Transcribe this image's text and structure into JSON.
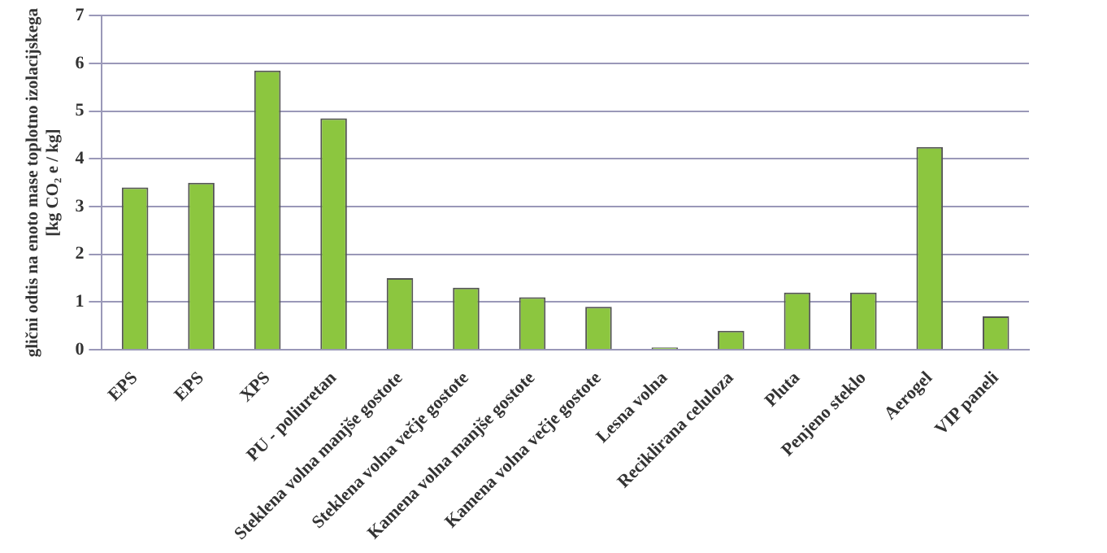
{
  "chart_data": {
    "type": "bar",
    "ylabel": "glični odtis na enoto mase toplotno izolacijskega\n[kg CO₂ e / kg]",
    "categories": [
      "EPS",
      "EPS",
      "XPS",
      "PU - poliuretan",
      "Steklena volna manjše gostote",
      "Steklena volna večje gostote",
      "Kamena volna manjše gostote",
      "Kamena volna večje gostote",
      "Lesna volna",
      "Reciklirana celuloza",
      "Pluta",
      "Penjeno steklo",
      "Aerogel",
      "VIP paneli"
    ],
    "values": [
      3.4,
      3.5,
      5.85,
      4.85,
      1.5,
      1.3,
      1.1,
      0.9,
      0.05,
      0.4,
      1.2,
      1.2,
      4.25,
      0.7
    ],
    "color": "#8cc63f",
    "ylim": [
      0,
      7
    ],
    "yticks": [
      0,
      1,
      2,
      3,
      4,
      5,
      6,
      7
    ],
    "grid": "y"
  }
}
